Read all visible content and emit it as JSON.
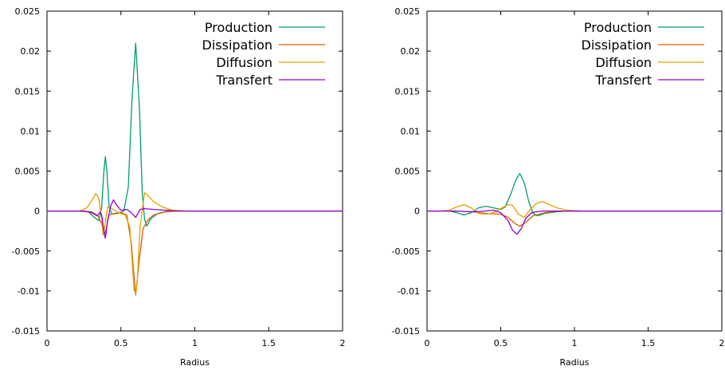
{
  "chart_data": [
    {
      "type": "line",
      "title": "",
      "xlabel": "Radius",
      "ylabel": "",
      "xlim": [
        0,
        2
      ],
      "ylim": [
        -0.015,
        0.025
      ],
      "x_ticks": [
        "0",
        "0.5",
        "1",
        "1.5",
        "2"
      ],
      "y_ticks": [
        "-0.015",
        "-0.01",
        "-0.005",
        "0",
        "0.005",
        "0.01",
        "0.015",
        "0.02",
        "0.025"
      ],
      "grid": false,
      "legend_position": "top-right",
      "series": [
        {
          "name": "Production",
          "color": "#009e73",
          "points": [
            [
              0,
              0
            ],
            [
              0.2,
              0
            ],
            [
              0.28,
              -0.0001
            ],
            [
              0.32,
              -0.0008
            ],
            [
              0.35,
              -0.0012
            ],
            [
              0.37,
              0.0005
            ],
            [
              0.385,
              0.005
            ],
            [
              0.395,
              0.0068
            ],
            [
              0.405,
              0.005
            ],
            [
              0.42,
              0.0005
            ],
            [
              0.44,
              -0.0004
            ],
            [
              0.48,
              -0.0003
            ],
            [
              0.52,
              0
            ],
            [
              0.55,
              0.003
            ],
            [
              0.575,
              0.014
            ],
            [
              0.6,
              0.021
            ],
            [
              0.625,
              0.013
            ],
            [
              0.645,
              0.002
            ],
            [
              0.66,
              -0.001
            ],
            [
              0.675,
              -0.0019
            ],
            [
              0.7,
              -0.001
            ],
            [
              0.75,
              -0.0003
            ],
            [
              0.82,
              0
            ],
            [
              2,
              0
            ]
          ]
        },
        {
          "name": "Dissipation",
          "color": "#d55e00",
          "points": [
            [
              0,
              0
            ],
            [
              0.25,
              0
            ],
            [
              0.3,
              -0.0001
            ],
            [
              0.34,
              -0.0005
            ],
            [
              0.37,
              -0.0016
            ],
            [
              0.39,
              -0.003
            ],
            [
              0.405,
              -0.0018
            ],
            [
              0.42,
              -0.0005
            ],
            [
              0.46,
              -0.0003
            ],
            [
              0.5,
              -0.0002
            ],
            [
              0.54,
              -0.0005
            ],
            [
              0.57,
              -0.004
            ],
            [
              0.6,
              -0.0105
            ],
            [
              0.625,
              -0.006
            ],
            [
              0.65,
              -0.0022
            ],
            [
              0.68,
              -0.0012
            ],
            [
              0.72,
              -0.0005
            ],
            [
              0.8,
              -0.0001
            ],
            [
              0.9,
              0
            ],
            [
              2,
              0
            ]
          ]
        },
        {
          "name": "Diffusion",
          "color": "#e69f00",
          "points": [
            [
              0,
              0
            ],
            [
              0.22,
              0
            ],
            [
              0.27,
              0.0004
            ],
            [
              0.3,
              0.0012
            ],
            [
              0.33,
              0.0022
            ],
            [
              0.35,
              0.0016
            ],
            [
              0.37,
              -0.001
            ],
            [
              0.38,
              -0.003
            ],
            [
              0.39,
              -0.002
            ],
            [
              0.41,
              0.0005
            ],
            [
              0.44,
              0.0003
            ],
            [
              0.48,
              -0.0002
            ],
            [
              0.53,
              -0.0005
            ],
            [
              0.56,
              -0.002
            ],
            [
              0.59,
              -0.01
            ],
            [
              0.6,
              -0.0103
            ],
            [
              0.61,
              -0.009
            ],
            [
              0.63,
              -0.002
            ],
            [
              0.66,
              0.0023
            ],
            [
              0.68,
              0.002
            ],
            [
              0.72,
              0.0012
            ],
            [
              0.78,
              0.0005
            ],
            [
              0.85,
              0.0001
            ],
            [
              0.95,
              0
            ],
            [
              2,
              0
            ]
          ]
        },
        {
          "name": "Transfert",
          "color": "#9400d3",
          "points": [
            [
              0,
              0
            ],
            [
              0.25,
              0
            ],
            [
              0.3,
              -0.0002
            ],
            [
              0.34,
              -0.0006
            ],
            [
              0.36,
              -0.0001
            ],
            [
              0.37,
              -0.0005
            ],
            [
              0.385,
              -0.0025
            ],
            [
              0.395,
              -0.0034
            ],
            [
              0.41,
              -0.0012
            ],
            [
              0.43,
              0.0006
            ],
            [
              0.45,
              0.0014
            ],
            [
              0.47,
              0.0008
            ],
            [
              0.5,
              0.0001
            ],
            [
              0.54,
              0.0002
            ],
            [
              0.57,
              -0.0002
            ],
            [
              0.6,
              -0.0008
            ],
            [
              0.63,
              0.0002
            ],
            [
              0.66,
              0.0003
            ],
            [
              0.72,
              0.0002
            ],
            [
              0.8,
              0.0001
            ],
            [
              0.9,
              0
            ],
            [
              2,
              0
            ]
          ]
        }
      ]
    },
    {
      "type": "line",
      "title": "",
      "xlabel": "Radius",
      "ylabel": "",
      "xlim": [
        0,
        2
      ],
      "ylim": [
        -0.015,
        0.025
      ],
      "x_ticks": [
        "0",
        "0.5",
        "1",
        "1.5",
        "2"
      ],
      "y_ticks": [
        "-0.015",
        "-0.01",
        "-0.005",
        "0",
        "0.005",
        "0.01",
        "0.015",
        "0.02",
        "0.025"
      ],
      "grid": false,
      "legend_position": "top-right",
      "series": [
        {
          "name": "Production",
          "color": "#009e73",
          "points": [
            [
              0,
              0
            ],
            [
              0.15,
              0
            ],
            [
              0.2,
              -0.0002
            ],
            [
              0.25,
              -0.0005
            ],
            [
              0.3,
              -0.0002
            ],
            [
              0.35,
              0.0004
            ],
            [
              0.4,
              0.0006
            ],
            [
              0.45,
              0.0004
            ],
            [
              0.5,
              0.0002
            ],
            [
              0.53,
              0.0005
            ],
            [
              0.57,
              0.0022
            ],
            [
              0.6,
              0.0038
            ],
            [
              0.63,
              0.0047
            ],
            [
              0.66,
              0.0035
            ],
            [
              0.69,
              0.0012
            ],
            [
              0.72,
              -0.0003
            ],
            [
              0.75,
              -0.0006
            ],
            [
              0.8,
              -0.0003
            ],
            [
              0.88,
              -0.0001
            ],
            [
              0.95,
              0
            ],
            [
              2,
              0
            ]
          ]
        },
        {
          "name": "Dissipation",
          "color": "#d55e00",
          "points": [
            [
              0,
              0
            ],
            [
              0.2,
              0
            ],
            [
              0.3,
              -0.0001
            ],
            [
              0.4,
              -0.0003
            ],
            [
              0.5,
              -0.0004
            ],
            [
              0.55,
              -0.0008
            ],
            [
              0.6,
              -0.0016
            ],
            [
              0.63,
              -0.0019
            ],
            [
              0.67,
              -0.0014
            ],
            [
              0.72,
              -0.0006
            ],
            [
              0.8,
              -0.0002
            ],
            [
              0.9,
              0
            ],
            [
              2,
              0
            ]
          ]
        },
        {
          "name": "Diffusion",
          "color": "#e69f00",
          "points": [
            [
              0,
              0
            ],
            [
              0.1,
              0
            ],
            [
              0.15,
              0.0001
            ],
            [
              0.2,
              0.0005
            ],
            [
              0.25,
              0.0008
            ],
            [
              0.3,
              0.0004
            ],
            [
              0.35,
              -0.0003
            ],
            [
              0.4,
              -0.0004
            ],
            [
              0.45,
              -0.0002
            ],
            [
              0.5,
              0.0003
            ],
            [
              0.55,
              0.0008
            ],
            [
              0.58,
              0.0007
            ],
            [
              0.62,
              -0.0004
            ],
            [
              0.66,
              -0.0008
            ],
            [
              0.7,
              0.0002
            ],
            [
              0.74,
              0.0009
            ],
            [
              0.78,
              0.0012
            ],
            [
              0.82,
              0.0009
            ],
            [
              0.88,
              0.0004
            ],
            [
              0.95,
              0.0001
            ],
            [
              1.05,
              0
            ],
            [
              2,
              0
            ]
          ]
        },
        {
          "name": "Transfert",
          "color": "#9400d3",
          "points": [
            [
              0,
              0
            ],
            [
              0.2,
              0
            ],
            [
              0.3,
              -0.0001
            ],
            [
              0.4,
              0
            ],
            [
              0.45,
              0.0001
            ],
            [
              0.5,
              -0.0002
            ],
            [
              0.55,
              -0.0012
            ],
            [
              0.58,
              -0.0024
            ],
            [
              0.61,
              -0.0029
            ],
            [
              0.64,
              -0.0022
            ],
            [
              0.67,
              -0.0009
            ],
            [
              0.71,
              -0.0002
            ],
            [
              0.78,
              0
            ],
            [
              2,
              0
            ]
          ]
        }
      ]
    }
  ]
}
